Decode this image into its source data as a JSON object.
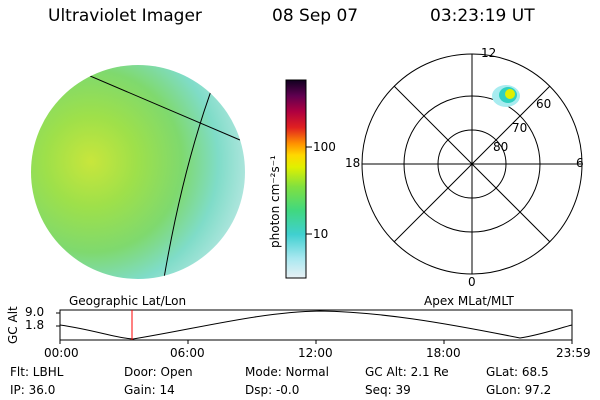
{
  "header": {
    "instrument": "Ultraviolet Imager",
    "date": "08 Sep 07",
    "time": "03:23:19 UT"
  },
  "colorbar": {
    "label": "photon cm⁻²s⁻¹",
    "ticks": [
      "100",
      "10"
    ]
  },
  "polar": {
    "mlt_labels": {
      "top": "12",
      "left": "18",
      "right": "6",
      "bottom": "0"
    },
    "lat_labels": [
      "60",
      "70",
      "80"
    ]
  },
  "timeline": {
    "left_title": "Geographic Lat/Lon",
    "right_title": "Apex MLat/MLT",
    "yaxis_label": "GC Alt",
    "y_ticks": [
      "9.0",
      "1.8"
    ],
    "x_ticks": [
      "00:00",
      "06:00",
      "12:00",
      "18:00",
      "23:59"
    ]
  },
  "status": {
    "row1": [
      {
        "key": "Flt",
        "text": "Flt: LBHL"
      },
      {
        "key": "Door",
        "text": "Door: Open"
      },
      {
        "key": "Mode",
        "text": "Mode: Normal"
      },
      {
        "key": "GCAlt",
        "text": "GC Alt: 2.1 Re"
      },
      {
        "key": "GLat",
        "text": "GLat:  68.5"
      }
    ],
    "row2": [
      {
        "key": "IP",
        "text": "IP: 36.0"
      },
      {
        "key": "Gain",
        "text": "Gain: 14"
      },
      {
        "key": "Dsp",
        "text": "Dsp:   -0.0"
      },
      {
        "key": "Seq",
        "text": "Seq: 39"
      },
      {
        "key": "GLon",
        "text": "GLon:  97.2"
      }
    ]
  },
  "colors": {
    "line": "#000000",
    "current_time_marker": "#ff0000"
  }
}
